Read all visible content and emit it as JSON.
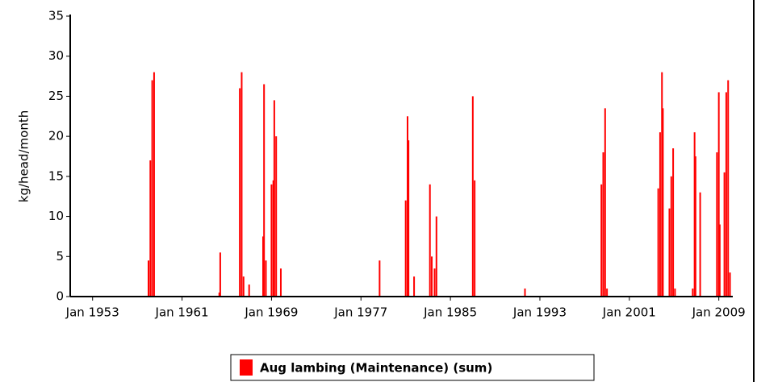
{
  "chart_data": {
    "type": "bar",
    "y_label": "kg/head/month",
    "x": [
      "1958-01",
      "1958-03",
      "1958-05",
      "1958-07",
      "1964-05",
      "1964-06",
      "1966-03",
      "1966-05",
      "1966-07",
      "1967-01",
      "1968-04",
      "1968-05",
      "1968-07",
      "1969-01",
      "1969-03",
      "1969-04",
      "1969-06",
      "1969-11",
      "1978-09",
      "1981-01",
      "1981-03",
      "1981-04",
      "1981-10",
      "1983-03",
      "1983-05",
      "1983-08",
      "1983-10",
      "1987-01",
      "1987-03",
      "1991-09",
      "1998-07",
      "1998-09",
      "1998-11",
      "1999-01",
      "2003-08",
      "2003-10",
      "2003-12",
      "2004-01",
      "2004-08",
      "2004-10",
      "2004-12",
      "2005-02",
      "2006-09",
      "2006-11",
      "2006-12",
      "2007-05",
      "2008-11",
      "2009-01",
      "2009-02",
      "2009-07",
      "2009-09",
      "2009-11",
      "2010-01"
    ],
    "series": [
      {
        "name": "Aug lambing (Maintenance) (sum)",
        "color": "#ff0000",
        "values": [
          4.5,
          17,
          27,
          28,
          0.5,
          5.5,
          26,
          28,
          2.5,
          1.5,
          7.5,
          26.5,
          4.5,
          14,
          14.5,
          24.5,
          20,
          3.5,
          4.5,
          12,
          22.5,
          19.5,
          2.5,
          14,
          5,
          3.5,
          10,
          25,
          14.5,
          1,
          14,
          18,
          23.5,
          1,
          13.5,
          20.5,
          28,
          23.5,
          11,
          15,
          18.5,
          1,
          1,
          20.5,
          17.5,
          13,
          18,
          25.5,
          9,
          15.5,
          25.5,
          27,
          3
        ]
      }
    ],
    "xlim": [
      "1951-01",
      "2010-04"
    ],
    "xticks": [
      {
        "value": "1953-01",
        "label": "Jan 1953"
      },
      {
        "value": "1961-01",
        "label": "Jan 1961"
      },
      {
        "value": "1969-01",
        "label": "Jan 1969"
      },
      {
        "value": "1977-01",
        "label": "Jan 1977"
      },
      {
        "value": "1985-01",
        "label": "Jan 1985"
      },
      {
        "value": "1993-01",
        "label": "Jan 1993"
      },
      {
        "value": "2001-01",
        "label": "Jan 2001"
      },
      {
        "value": "2009-01",
        "label": "Jan 2009"
      }
    ],
    "ylim": [
      0,
      35
    ],
    "yticks": [
      0,
      5,
      10,
      15,
      20,
      25,
      30,
      35
    ],
    "grid": false,
    "legend": "bottom"
  }
}
